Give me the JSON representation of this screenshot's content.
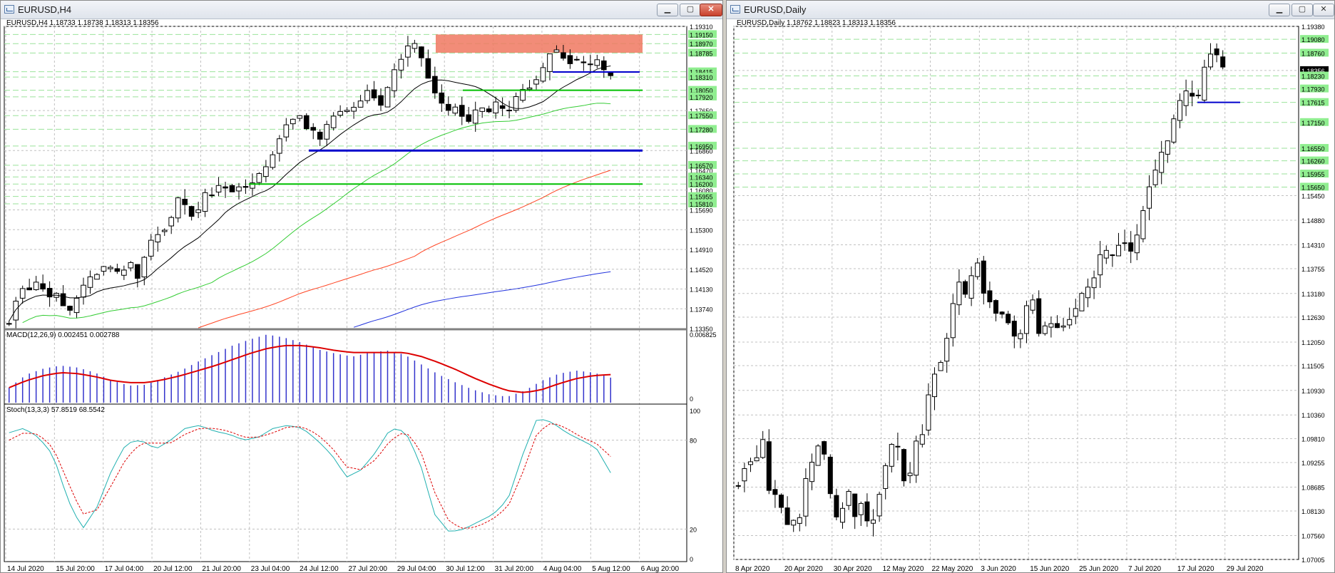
{
  "windows": {
    "left": {
      "title": "EURUSD,H4",
      "header": "EURUSD,H4  1.18733 1.18738 1.18313 1.18356",
      "price_labels": [
        "1.19310",
        "1.19150",
        "1.18970",
        "1.18785",
        "1.18415",
        "1.18310",
        "1.18050",
        "1.17920",
        "1.17650",
        "1.17550",
        "1.17280",
        "1.16950",
        "1.16860",
        "1.16570",
        "1.16470",
        "1.16340",
        "1.16200",
        "1.16080",
        "1.15955",
        "1.15810",
        "1.15690",
        "1.15300",
        "1.14910",
        "1.14520",
        "1.14130",
        "1.13740",
        "1.13350"
      ],
      "time_labels": [
        "14 Jul 2020",
        "15 Jul 20:00",
        "17 Jul 04:00",
        "20 Jul 12:00",
        "21 Jul 20:00",
        "23 Jul 04:00",
        "24 Jul 12:00",
        "27 Jul 20:00",
        "29 Jul 04:00",
        "30 Jul 12:00",
        "31 Jul 20:00",
        "4 Aug 04:00",
        "5 Aug 12:00",
        "6 Aug 20:00"
      ],
      "macd_header": "MACD(12,26,9) 0.002451 0.002788",
      "macd_labels": [
        "0.006825",
        "0"
      ],
      "stoch_header": "Stoch(13,3,3) 57.8519 68.5542",
      "stoch_labels": [
        "100",
        "80",
        "20",
        "0"
      ]
    },
    "right": {
      "title": "EURUSD,Daily",
      "header": "EURUSD,Daily  1.18762 1.18823 1.18313 1.18356",
      "price_labels": [
        "1.19380",
        "1.19080",
        "1.18760",
        "1.18356",
        "1.18230",
        "1.17930",
        "1.17615",
        "1.17150",
        "1.16550",
        "1.16260",
        "1.15955",
        "1.15650",
        "1.15450",
        "1.14880",
        "1.14310",
        "1.13755",
        "1.13180",
        "1.12630",
        "1.12050",
        "1.11505",
        "1.10930",
        "1.10360",
        "1.09810",
        "1.09255",
        "1.08685",
        "1.08130",
        "1.07560",
        "1.07005"
      ],
      "time_labels": [
        "8 Apr 2020",
        "20 Apr 2020",
        "30 Apr 2020",
        "12 May 2020",
        "22 May 2020",
        "3 Jun 2020",
        "15 Jun 2020",
        "25 Jun 2020",
        "7 Jul 2020",
        "17 Jul 2020",
        "29 Jul 2020"
      ]
    }
  },
  "colors": {
    "bg": "#ffffff",
    "grid": "#c0c0c0",
    "candle": "#000000",
    "green_level": "#00c000",
    "blue_level": "#0000cc",
    "zone": "#f07860",
    "ma_black": "#000000",
    "ma_green": "#33cc33",
    "ma_red": "#ff4422",
    "ma_blue": "#2233dd",
    "macd_hist": "#3333cc",
    "macd_signal": "#dd0000",
    "stoch_main": "#20b0b0",
    "stoch_signal": "#dd0000",
    "label_green": "#90ee90"
  },
  "chart_data": [
    {
      "type": "candlestick",
      "title": "EURUSD,H4",
      "ylim": [
        1.1335,
        1.1931
      ],
      "header_values": {
        "open": 1.18733,
        "high": 1.18738,
        "low": 1.18313,
        "close": 1.18356
      },
      "closes_sampled": [
        1.135,
        1.14,
        1.142,
        1.141,
        1.143,
        1.139,
        1.141,
        1.138,
        1.137,
        1.14,
        1.142,
        1.144,
        1.145,
        1.146,
        1.144,
        1.145,
        1.146,
        1.143,
        1.149,
        1.152,
        1.153,
        1.154,
        1.159,
        1.158,
        1.156,
        1.157,
        1.161,
        1.16,
        1.163,
        1.16,
        1.162,
        1.161,
        1.162,
        1.164,
        1.166,
        1.169,
        1.173,
        1.175,
        1.176,
        1.173,
        1.172,
        1.171,
        1.174,
        1.176,
        1.176,
        1.177,
        1.178,
        1.181,
        1.179,
        1.177,
        1.182,
        1.186,
        1.188,
        1.19,
        1.187,
        1.183,
        1.18,
        1.177,
        1.176,
        1.178,
        1.173,
        1.176,
        1.177,
        1.176,
        1.178,
        1.176,
        1.177,
        1.18,
        1.181,
        1.182,
        1.184,
        1.188,
        1.188,
        1.187,
        1.186,
        1.186,
        1.185,
        1.187,
        1.184,
        1.1836
      ],
      "levels_green": [
        1.1805,
        1.162
      ],
      "levels_blue": [
        1.1686,
        1.1841
      ],
      "zone": [
        1.1879,
        1.1915
      ]
    },
    {
      "type": "bar",
      "title": "MACD(12,26,9)",
      "values_sampled": [
        0.0015,
        0.0028,
        0.0034,
        0.0037,
        0.0035,
        0.003,
        0.0022,
        0.0017,
        0.0018,
        0.0025,
        0.0032,
        0.0041,
        0.0049,
        0.0057,
        0.0063,
        0.0068,
        0.0065,
        0.006,
        0.0053,
        0.0049,
        0.0046,
        0.005,
        0.0052,
        0.0048,
        0.0038,
        0.0028,
        0.002,
        0.0013,
        0.0008,
        0.0006,
        0.0012,
        0.0022,
        0.0029,
        0.0032,
        0.003,
        0.0025
      ],
      "signal_sampled": [
        0.0015,
        0.0022,
        0.0027,
        0.003,
        0.0029,
        0.0026,
        0.0022,
        0.002,
        0.002,
        0.0023,
        0.0027,
        0.0032,
        0.0037,
        0.0043,
        0.0049,
        0.0054,
        0.0057,
        0.0057,
        0.0055,
        0.0052,
        0.005,
        0.005,
        0.005,
        0.005,
        0.0046,
        0.004,
        0.0033,
        0.0025,
        0.0018,
        0.0012,
        0.001,
        0.0013,
        0.0019,
        0.0024,
        0.0027,
        0.0028
      ],
      "ylim": [
        0,
        0.006825
      ]
    },
    {
      "type": "line",
      "title": "Stoch(13,3,3)",
      "main_sampled": [
        85,
        88,
        82,
        70,
        40,
        20,
        35,
        60,
        78,
        80,
        74,
        80,
        88,
        90,
        86,
        84,
        80,
        82,
        88,
        90,
        88,
        80,
        70,
        55,
        60,
        72,
        88,
        86,
        65,
        30,
        18,
        20,
        25,
        30,
        40,
        70,
        95,
        92,
        85,
        80,
        75,
        58
      ],
      "signal_sampled": [
        80,
        85,
        84,
        75,
        52,
        30,
        33,
        50,
        68,
        78,
        78,
        78,
        84,
        88,
        88,
        86,
        82,
        82,
        85,
        89,
        89,
        84,
        75,
        62,
        60,
        67,
        80,
        86,
        74,
        45,
        25,
        20,
        22,
        27,
        35,
        58,
        85,
        92,
        88,
        82,
        78,
        69
      ],
      "ylim": [
        0,
        100
      ]
    },
    {
      "type": "candlestick",
      "title": "EURUSD,Daily",
      "ylim": [
        1.07005,
        1.1938
      ],
      "header_values": {
        "open": 1.18762,
        "high": 1.18823,
        "low": 1.18313,
        "close": 1.18356
      },
      "closes_sampled": [
        1.088,
        1.092,
        1.093,
        1.094,
        1.097,
        1.086,
        1.085,
        1.082,
        1.078,
        1.079,
        1.08,
        1.088,
        1.092,
        1.097,
        1.094,
        1.085,
        1.079,
        1.082,
        1.085,
        1.08,
        1.083,
        1.079,
        1.08,
        1.086,
        1.092,
        1.096,
        1.096,
        1.089,
        1.09,
        1.097,
        1.1,
        1.108,
        1.114,
        1.116,
        1.122,
        1.129,
        1.134,
        1.131,
        1.136,
        1.139,
        1.132,
        1.13,
        1.128,
        1.127,
        1.125,
        1.121,
        1.123,
        1.128,
        1.13,
        1.122,
        1.124,
        1.125,
        1.124,
        1.125,
        1.126,
        1.128,
        1.131,
        1.133,
        1.136,
        1.14,
        1.141,
        1.14,
        1.143,
        1.144,
        1.141,
        1.145,
        1.151,
        1.157,
        1.16,
        1.164,
        1.167,
        1.172,
        1.176,
        1.178,
        1.178,
        1.177,
        1.184,
        1.188,
        1.187,
        1.1836
      ],
      "levels_blue": [
        1.17615
      ]
    }
  ]
}
